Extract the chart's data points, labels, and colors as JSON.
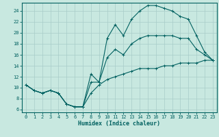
{
  "xlabel": "Humidex (Indice chaleur)",
  "ylabel": "",
  "xlim": [
    -0.5,
    23.5
  ],
  "ylim": [
    5.5,
    25.5
  ],
  "xticks": [
    0,
    1,
    2,
    3,
    4,
    5,
    6,
    7,
    8,
    9,
    10,
    11,
    12,
    13,
    14,
    15,
    16,
    17,
    18,
    19,
    20,
    21,
    22,
    23
  ],
  "yticks": [
    6,
    8,
    10,
    12,
    14,
    16,
    18,
    20,
    22,
    24
  ],
  "background_color": "#c8e8e0",
  "grid_color": "#a8ccc8",
  "line_color": "#006060",
  "x_vals": [
    0,
    1,
    2,
    3,
    4,
    5,
    6,
    7,
    8,
    9,
    10,
    11,
    12,
    13,
    14,
    15,
    16,
    17,
    18,
    19,
    20,
    21,
    22,
    23
  ],
  "y_max": [
    10.5,
    9.5,
    9.0,
    9.5,
    9.0,
    7.0,
    6.5,
    6.5,
    12.5,
    11.0,
    19.0,
    21.5,
    19.5,
    22.5,
    24.0,
    25.0,
    25.0,
    24.5,
    24.0,
    23.0,
    22.5,
    19.5,
    16.5,
    15.0
  ],
  "y_min": [
    10.5,
    9.5,
    9.0,
    9.5,
    9.0,
    7.0,
    6.5,
    6.5,
    9.0,
    10.5,
    11.5,
    12.0,
    12.5,
    13.0,
    13.5,
    13.5,
    13.5,
    14.0,
    14.0,
    14.5,
    14.5,
    14.5,
    15.0,
    15.0
  ],
  "y_mean": [
    10.5,
    9.5,
    9.0,
    9.5,
    9.0,
    7.0,
    6.5,
    6.5,
    11.0,
    11.0,
    15.5,
    17.0,
    16.0,
    18.0,
    19.0,
    19.5,
    19.5,
    19.5,
    19.5,
    19.0,
    19.0,
    17.0,
    16.0,
    15.0
  ],
  "xlabel_fontsize": 6,
  "tick_fontsize": 5,
  "tick_color": "#006060",
  "spine_color": "#006060"
}
